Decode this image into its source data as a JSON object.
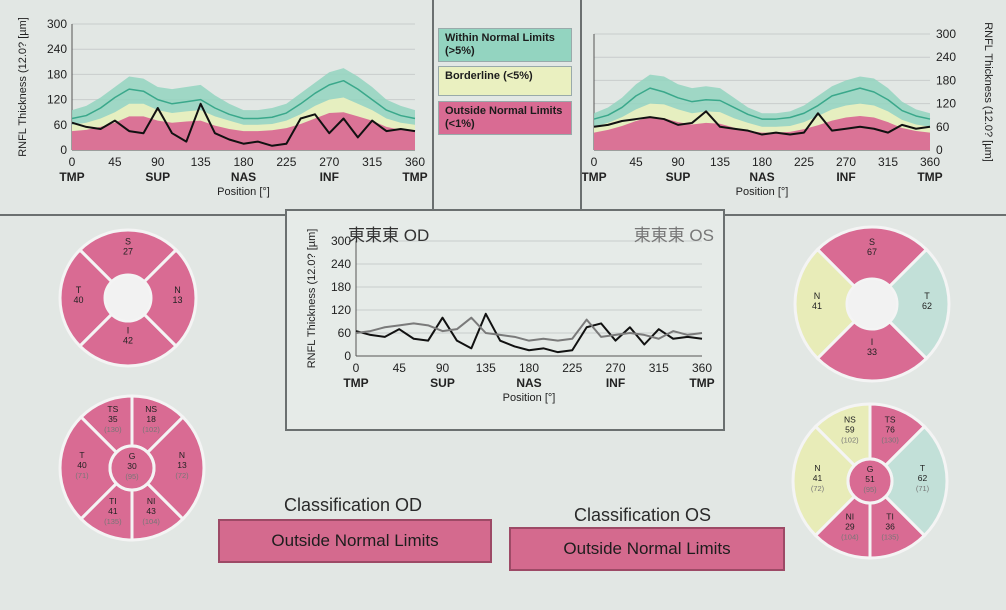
{
  "colors": {
    "normal_band": "#93d4c0",
    "borderline_band": "#eaf0c0",
    "outside_band": "#d96b93",
    "od_line": "#111111",
    "os_line": "#7a7a7a",
    "norm_line": "#3aa88b",
    "sector_outside": "#d96b93",
    "sector_borderline": "#e8ecb8",
    "sector_normal": "#c2e0d8",
    "grid": "#c8cccc"
  },
  "legend": {
    "within": "Within Normal Limits (>5%)",
    "borderline": "Borderline (<5%)",
    "outside": "Outside Normal Limits (<1%)"
  },
  "axis_common": {
    "ylabel": "RNFL Thickness (12.0? [µm]",
    "xlabel": "Position [°]",
    "yticks": [
      0,
      60,
      120,
      180,
      240,
      300
    ],
    "xticks": [
      0,
      45,
      90,
      135,
      180,
      225,
      270,
      315,
      360
    ],
    "region_labels": [
      {
        "text": "TMP",
        "at": 0
      },
      {
        "text": "SUP",
        "at": 90
      },
      {
        "text": "NAS",
        "at": 180
      },
      {
        "text": "INF",
        "at": 270
      },
      {
        "text": "TMP",
        "at": 360
      }
    ]
  },
  "chart_data": [
    {
      "id": "od",
      "type": "area",
      "xlabel": "Position [°]",
      "ylabel": "RNFL Thickness (12.0? [µm]",
      "xlim": [
        0,
        360
      ],
      "ylim": [
        0,
        300
      ],
      "grid": true,
      "x": [
        0,
        15,
        30,
        45,
        60,
        75,
        90,
        105,
        120,
        135,
        150,
        165,
        180,
        195,
        210,
        225,
        240,
        255,
        270,
        285,
        300,
        315,
        330,
        345,
        360
      ],
      "series": [
        {
          "name": "Within Normal Limits (>5%)",
          "values": [
            95,
            105,
            125,
            150,
            175,
            170,
            150,
            145,
            150,
            155,
            130,
            110,
            95,
            95,
            100,
            110,
            135,
            160,
            185,
            195,
            175,
            150,
            120,
            105,
            95
          ]
        },
        {
          "name": "Borderline (<5%)",
          "values": [
            60,
            65,
            75,
            90,
            110,
            110,
            95,
            88,
            92,
            95,
            80,
            70,
            60,
            60,
            62,
            70,
            85,
            105,
            120,
            125,
            110,
            95,
            75,
            65,
            60
          ]
        },
        {
          "name": "Outside Normal Limits (<1%)",
          "values": [
            45,
            48,
            55,
            65,
            80,
            80,
            70,
            65,
            68,
            70,
            58,
            50,
            45,
            45,
            47,
            52,
            62,
            75,
            88,
            90,
            80,
            70,
            55,
            48,
            45
          ]
        },
        {
          "name": "norm",
          "values": [
            75,
            82,
            100,
            125,
            145,
            140,
            120,
            110,
            115,
            120,
            100,
            85,
            75,
            75,
            78,
            88,
            110,
            135,
            155,
            165,
            145,
            120,
            95,
            82,
            75
          ]
        },
        {
          "name": "OD",
          "values": [
            65,
            55,
            50,
            70,
            45,
            40,
            100,
            40,
            20,
            110,
            40,
            25,
            15,
            20,
            10,
            15,
            75,
            85,
            40,
            75,
            30,
            70,
            45,
            50,
            45
          ]
        }
      ]
    },
    {
      "id": "os",
      "type": "area",
      "xlabel": "Position [°]",
      "ylabel": "RNFL Thickness (12.0? [µm]",
      "xlim": [
        0,
        360
      ],
      "ylim": [
        0,
        300
      ],
      "grid": true,
      "x": [
        0,
        15,
        30,
        45,
        60,
        75,
        90,
        105,
        120,
        135,
        150,
        165,
        180,
        195,
        210,
        225,
        240,
        255,
        270,
        285,
        300,
        315,
        330,
        345,
        360
      ],
      "series": [
        {
          "name": "Within Normal Limits (>5%)",
          "values": [
            95,
            110,
            135,
            170,
            195,
            190,
            170,
            160,
            165,
            160,
            135,
            110,
            95,
            95,
            100,
            115,
            140,
            165,
            180,
            190,
            185,
            160,
            125,
            105,
            95
          ]
        },
        {
          "name": "Borderline (<5%)",
          "values": [
            60,
            70,
            85,
            105,
            120,
            118,
            105,
            95,
            100,
            98,
            82,
            70,
            60,
            60,
            62,
            72,
            88,
            105,
            115,
            120,
            115,
            100,
            78,
            66,
            60
          ]
        },
        {
          "name": "Outside Normal Limits (<1%)",
          "values": [
            45,
            52,
            62,
            75,
            85,
            82,
            72,
            66,
            70,
            68,
            58,
            50,
            45,
            45,
            47,
            54,
            64,
            76,
            84,
            88,
            84,
            72,
            57,
            49,
            45
          ]
        },
        {
          "name": "norm",
          "values": [
            80,
            90,
            110,
            140,
            160,
            150,
            135,
            125,
            130,
            128,
            110,
            92,
            80,
            80,
            84,
            95,
            115,
            140,
            150,
            160,
            150,
            130,
            102,
            88,
            80
          ]
        },
        {
          "name": "OS",
          "values": [
            60,
            65,
            75,
            80,
            85,
            80,
            65,
            70,
            100,
            60,
            55,
            50,
            40,
            45,
            40,
            45,
            95,
            50,
            55,
            60,
            55,
            45,
            65,
            55,
            60
          ]
        }
      ]
    },
    {
      "id": "combined",
      "type": "line",
      "title_left": "東東東 OD",
      "title_right": "東東東 OS",
      "xlabel": "Position [°]",
      "ylabel": "RNFL Thickness (12.0? [µm]",
      "xlim": [
        0,
        360
      ],
      "ylim": [
        0,
        300
      ],
      "grid": true,
      "x": [
        0,
        15,
        30,
        45,
        60,
        75,
        90,
        105,
        120,
        135,
        150,
        165,
        180,
        195,
        210,
        225,
        240,
        255,
        270,
        285,
        300,
        315,
        330,
        345,
        360
      ],
      "series": [
        {
          "name": "OD",
          "values": [
            65,
            55,
            50,
            70,
            45,
            40,
            100,
            40,
            20,
            110,
            40,
            25,
            15,
            20,
            10,
            15,
            75,
            85,
            40,
            75,
            30,
            70,
            45,
            50,
            45
          ]
        },
        {
          "name": "OS",
          "values": [
            60,
            65,
            75,
            80,
            85,
            80,
            65,
            70,
            100,
            60,
            55,
            50,
            40,
            45,
            40,
            45,
            95,
            50,
            55,
            60,
            55,
            45,
            65,
            55,
            60
          ]
        }
      ]
    }
  ],
  "sectors": {
    "od_quadrant": {
      "S": {
        "label": "S",
        "value": "27",
        "status": "outside"
      },
      "N": {
        "label": "N",
        "value": "13",
        "status": "outside"
      },
      "I": {
        "label": "I",
        "value": "42",
        "status": "outside"
      },
      "T": {
        "label": "T",
        "value": "40",
        "status": "outside"
      }
    },
    "os_quadrant": {
      "S": {
        "label": "S",
        "value": "67",
        "status": "outside"
      },
      "N": {
        "label": "N",
        "value": "41",
        "status": "borderline"
      },
      "I": {
        "label": "I",
        "value": "33",
        "status": "outside"
      },
      "T": {
        "label": "T",
        "value": "62",
        "status": "normal"
      }
    },
    "od_clock": {
      "TS": {
        "label": "TS",
        "value": "35",
        "ref": "(130)",
        "status": "outside"
      },
      "NS": {
        "label": "NS",
        "value": "18",
        "ref": "(102)",
        "status": "outside"
      },
      "N": {
        "label": "N",
        "value": "13",
        "ref": "(72)",
        "status": "outside"
      },
      "NI": {
        "label": "NI",
        "value": "43",
        "ref": "(104)",
        "status": "outside"
      },
      "TI": {
        "label": "TI",
        "value": "41",
        "ref": "(135)",
        "status": "outside"
      },
      "T": {
        "label": "T",
        "value": "40",
        "ref": "(71)",
        "status": "outside"
      },
      "G": {
        "label": "G",
        "value": "30",
        "ref": "(95)",
        "status": "outside"
      }
    },
    "os_clock": {
      "TS": {
        "label": "TS",
        "value": "76",
        "ref": "(130)",
        "status": "outside"
      },
      "NS": {
        "label": "NS",
        "value": "59",
        "ref": "(102)",
        "status": "borderline"
      },
      "N": {
        "label": "N",
        "value": "41",
        "ref": "(72)",
        "status": "borderline"
      },
      "NI": {
        "label": "NI",
        "value": "29",
        "ref": "(104)",
        "status": "outside"
      },
      "TI": {
        "label": "TI",
        "value": "36",
        "ref": "(135)",
        "status": "outside"
      },
      "T": {
        "label": "T",
        "value": "62",
        "ref": "(71)",
        "status": "normal"
      },
      "G": {
        "label": "G",
        "value": "51",
        "ref": "(95)",
        "status": "outside"
      }
    }
  },
  "classification": {
    "od_title": "Classification OD",
    "od_value": "Outside Normal Limits",
    "os_title": "Classification OS",
    "os_value": "Outside Normal Limits"
  }
}
